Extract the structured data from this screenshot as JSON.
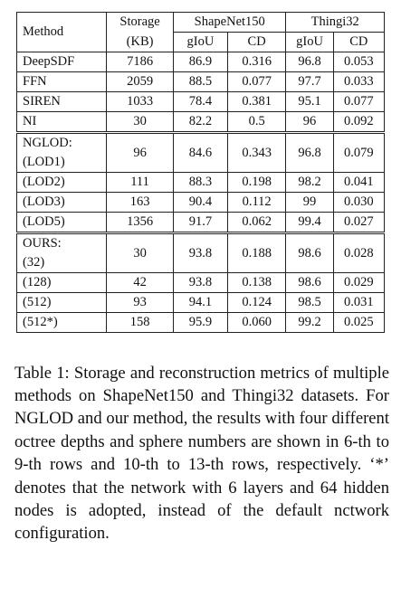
{
  "table": {
    "header": {
      "method": "Method",
      "storage": "Storage",
      "storage_unit": "(KB)",
      "shapenet": "ShapeNet150",
      "thingi": "Thingi32",
      "giou": "gIoU",
      "cd": "CD"
    },
    "rows": [
      {
        "m1": "DeepSDF",
        "m2": "",
        "storage": "7186",
        "s_giou": "86.9",
        "s_cd": "0.316",
        "t_giou": "96.8",
        "t_cd": "0.053"
      },
      {
        "m1": "FFN",
        "m2": "",
        "storage": "2059",
        "s_giou": "88.5",
        "s_cd": "0.077",
        "t_giou": "97.7",
        "t_cd": "0.033"
      },
      {
        "m1": "SIREN",
        "m2": "",
        "storage": "1033",
        "s_giou": "78.4",
        "s_cd": "0.381",
        "t_giou": "95.1",
        "t_cd": "0.077"
      },
      {
        "m1": "NI",
        "m2": "",
        "storage": "30",
        "s_giou": "82.2",
        "s_cd": "0.5",
        "t_giou": "96",
        "t_cd": "0.092"
      },
      {
        "m1": "NGLOD:",
        "m2": "(LOD1)",
        "storage": "96",
        "s_giou": "84.6",
        "s_cd": "0.343",
        "t_giou": "96.8",
        "t_cd": "0.079"
      },
      {
        "m1": "(LOD2)",
        "m2": "",
        "storage": "111",
        "s_giou": "88.3",
        "s_cd": "0.198",
        "t_giou": "98.2",
        "t_cd": "0.041"
      },
      {
        "m1": "(LOD3)",
        "m2": "",
        "storage": "163",
        "s_giou": "90.4",
        "s_cd": "0.112",
        "t_giou": "99",
        "t_cd": "0.030"
      },
      {
        "m1": "(LOD5)",
        "m2": "",
        "storage": "1356",
        "s_giou": "91.7",
        "s_cd": "0.062",
        "t_giou": "99.4",
        "t_cd": "0.027"
      },
      {
        "m1": "OURS:",
        "m2": "(32)",
        "storage": "30",
        "s_giou": "93.8",
        "s_cd": "0.188",
        "t_giou": "98.6",
        "t_cd": "0.028"
      },
      {
        "m1": "(128)",
        "m2": "",
        "storage": "42",
        "s_giou": "93.8",
        "s_cd": "0.138",
        "t_giou": "98.6",
        "t_cd": "0.029"
      },
      {
        "m1": "(512)",
        "m2": "",
        "storage": "93",
        "s_giou": "94.1",
        "s_cd": "0.124",
        "t_giou": "98.5",
        "t_cd": "0.031"
      },
      {
        "m1": "(512*)",
        "m2": "",
        "storage": "158",
        "s_giou": "95.9",
        "s_cd": "0.060",
        "t_giou": "99.2",
        "t_cd": "0.025"
      }
    ]
  },
  "caption": "Table 1: Storage and reconstruction metrics of multiple methods on ShapeNet150 and Thingi32 datasets. For NGLOD and our method, the results with four different octree depths and sphere numbers are shown in 6-th to 9-th rows and 10-th to 13-th rows, respectively. ‘*’ denotes that the network with 6 layers and 64 hidden nodes is adopted, instead of the default nctwork configuration."
}
